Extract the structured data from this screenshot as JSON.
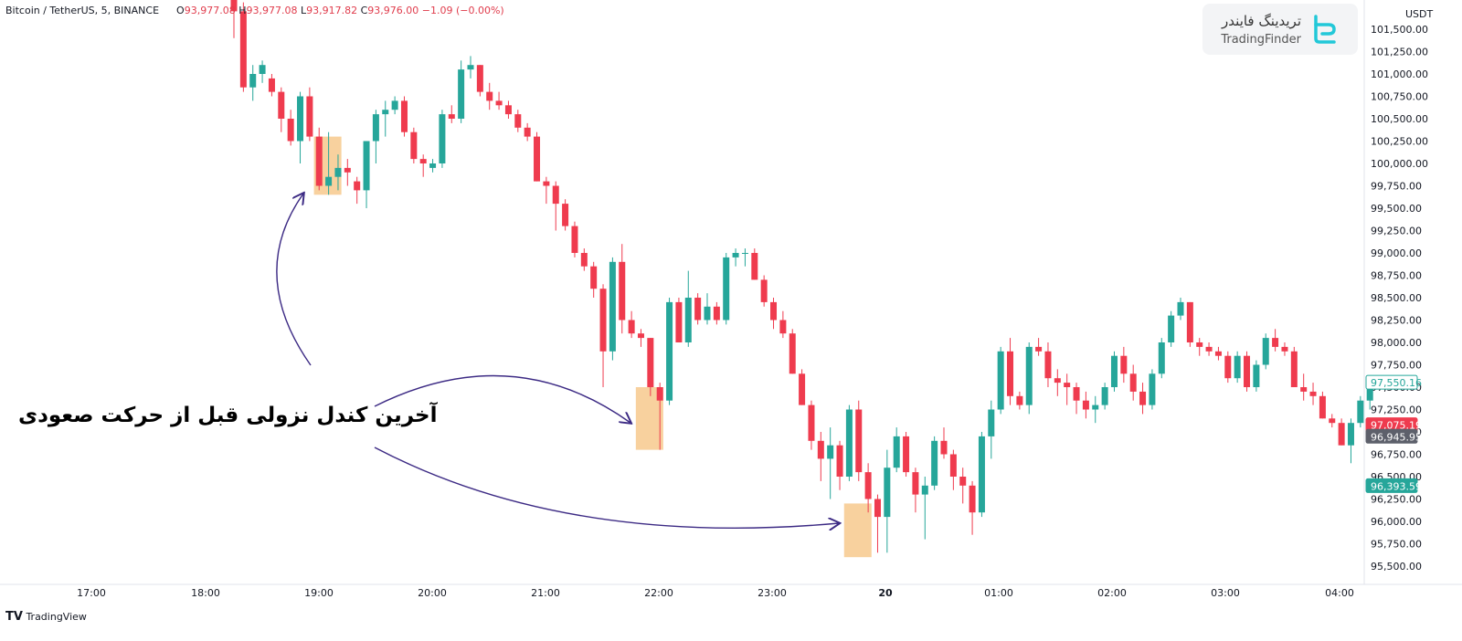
{
  "header": {
    "symbol": "Bitcoin / TetherUS, 5, BINANCE",
    "open_label": "O",
    "open": "93,977.08",
    "high_label": "H",
    "high": "93,977.08",
    "low_label": "L",
    "low": "93,917.82",
    "close_label": "C",
    "close": "93,976.00",
    "change": "−1.09 (−0.00%)"
  },
  "watermark": {
    "fa": "تریدینگ فایندر",
    "en": "TradingFinder",
    "logo_icon": "tradingfinder-logo-icon"
  },
  "annotation": "آخرین کندل نزولی قبل از حرکت صعودی",
  "footer": {
    "brand": "TradingView",
    "logo_icon": "tradingview-logo-icon"
  },
  "colors": {
    "up": "#26a69a",
    "down": "#ef3b4e",
    "highlight": "#f7c98d",
    "arrow": "#3c2a84"
  },
  "chart_data": {
    "type": "candlestick",
    "currency": "USDT",
    "ylim": [
      95300,
      101800
    ],
    "y_ticks": [
      "95,500.00",
      "95,750.00",
      "96,000.00",
      "96,250.00",
      "96,500.00",
      "96,750.00",
      "97,000.00",
      "97,250.00",
      "97,500.00",
      "97,750.00",
      "98,000.00",
      "98,250.00",
      "98,500.00",
      "98,750.00",
      "99,000.00",
      "99,250.00",
      "99,500.00",
      "99,750.00",
      "100,000.00",
      "100,250.00",
      "100,500.00",
      "100,750.00",
      "101,000.00",
      "101,250.00",
      "101,500.00"
    ],
    "x_ticks": [
      "17:00",
      "18:00",
      "19:00",
      "20:00",
      "21:00",
      "22:00",
      "23:00",
      "20",
      "01:00",
      "02:00",
      "03:00",
      "04:00"
    ],
    "price_tags": [
      {
        "value": 97550.16,
        "label": "97,550.16",
        "style": "outline-up"
      },
      {
        "value": 97075.19,
        "label": "97,075.19",
        "style": "down"
      },
      {
        "value": 96945.95,
        "label": "96,945.95",
        "style": "gray"
      },
      {
        "value": 96393.59,
        "label": "96,393.59",
        "style": "up"
      }
    ],
    "candles": [
      [
        102400,
        102600,
        101400,
        101700
      ],
      [
        101700,
        101800,
        100800,
        100850
      ],
      [
        100850,
        101100,
        100700,
        101000
      ],
      [
        101000,
        101150,
        100900,
        101100
      ],
      [
        100950,
        101000,
        100750,
        100800
      ],
      [
        100800,
        100850,
        100350,
        100500
      ],
      [
        100500,
        100600,
        100200,
        100250
      ],
      [
        100250,
        100800,
        100000,
        100750
      ],
      [
        100750,
        100850,
        100250,
        100300
      ],
      [
        100300,
        100400,
        99700,
        99750
      ],
      [
        99750,
        100350,
        99650,
        99850
      ],
      [
        99850,
        100100,
        99700,
        99950
      ],
      [
        99950,
        100050,
        99750,
        99900
      ],
      [
        99800,
        99850,
        99550,
        99700
      ],
      [
        99700,
        100250,
        99500,
        100250
      ],
      [
        100250,
        100600,
        100000,
        100550
      ],
      [
        100550,
        100700,
        100300,
        100600
      ],
      [
        100600,
        100750,
        100550,
        100700
      ],
      [
        100700,
        100750,
        100300,
        100350
      ],
      [
        100350,
        100400,
        100000,
        100050
      ],
      [
        100050,
        100100,
        99850,
        100000
      ],
      [
        99950,
        100050,
        99900,
        100000
      ],
      [
        100000,
        100600,
        99950,
        100550
      ],
      [
        100550,
        100650,
        100450,
        100500
      ],
      [
        100500,
        101150,
        100450,
        101050
      ],
      [
        101050,
        101200,
        100950,
        101100
      ],
      [
        101100,
        101100,
        100750,
        100800
      ],
      [
        100800,
        100900,
        100600,
        100700
      ],
      [
        100700,
        100800,
        100600,
        100650
      ],
      [
        100650,
        100700,
        100500,
        100550
      ],
      [
        100550,
        100600,
        100350,
        100400
      ],
      [
        100400,
        100450,
        100250,
        100300
      ],
      [
        100300,
        100350,
        99800,
        99800
      ],
      [
        99800,
        99850,
        99550,
        99750
      ],
      [
        99750,
        99800,
        99250,
        99550
      ],
      [
        99550,
        99600,
        99250,
        99300
      ],
      [
        99300,
        99350,
        98950,
        99000
      ],
      [
        99000,
        99050,
        98800,
        98850
      ],
      [
        98850,
        98900,
        98500,
        98600
      ],
      [
        98600,
        98650,
        97500,
        97900
      ],
      [
        97900,
        98950,
        97800,
        98900
      ],
      [
        98900,
        99100,
        98100,
        98250
      ],
      [
        98250,
        98350,
        98050,
        98100
      ],
      [
        98100,
        98150,
        97950,
        98050
      ],
      [
        98050,
        98050,
        97400,
        97500
      ],
      [
        97500,
        97550,
        96800,
        97350
      ],
      [
        97350,
        98500,
        97300,
        98450
      ],
      [
        98450,
        98500,
        98000,
        98000
      ],
      [
        98000,
        98800,
        97950,
        98500
      ],
      [
        98500,
        98550,
        98200,
        98250
      ],
      [
        98250,
        98550,
        98200,
        98400
      ],
      [
        98400,
        98450,
        98200,
        98250
      ],
      [
        98250,
        99000,
        98200,
        98950
      ],
      [
        98950,
        99050,
        98850,
        99000
      ],
      [
        99000,
        99050,
        98850,
        99000
      ],
      [
        99000,
        99050,
        98700,
        98700
      ],
      [
        98700,
        98750,
        98400,
        98450
      ],
      [
        98450,
        98500,
        98150,
        98250
      ],
      [
        98250,
        98350,
        98050,
        98100
      ],
      [
        98100,
        98150,
        97650,
        97650
      ],
      [
        97650,
        97700,
        97300,
        97300
      ],
      [
        97300,
        97350,
        96800,
        96900
      ],
      [
        96900,
        97000,
        96450,
        96700
      ],
      [
        96700,
        97050,
        96250,
        96850
      ],
      [
        96850,
        96900,
        96350,
        96500
      ],
      [
        96500,
        97300,
        96450,
        97250
      ],
      [
        97250,
        97350,
        96450,
        96550
      ],
      [
        96550,
        96650,
        96100,
        96250
      ],
      [
        96250,
        96300,
        95650,
        96050
      ],
      [
        96050,
        96800,
        95650,
        96600
      ],
      [
        96600,
        97050,
        96550,
        96950
      ],
      [
        96950,
        97000,
        96500,
        96550
      ],
      [
        96550,
        96600,
        96100,
        96300
      ],
      [
        96300,
        96500,
        95800,
        96400
      ],
      [
        96400,
        96950,
        96350,
        96900
      ],
      [
        96900,
        97050,
        96700,
        96750
      ],
      [
        96750,
        96800,
        96350,
        96500
      ],
      [
        96500,
        96600,
        96200,
        96400
      ],
      [
        96400,
        96450,
        95850,
        96100
      ],
      [
        96100,
        97000,
        96050,
        96950
      ],
      [
        96950,
        97350,
        96700,
        97250
      ],
      [
        97250,
        97950,
        97200,
        97900
      ],
      [
        97900,
        98050,
        97300,
        97400
      ],
      [
        97400,
        97450,
        97250,
        97300
      ],
      [
        97300,
        98000,
        97200,
        97950
      ],
      [
        97950,
        98050,
        97850,
        97900
      ],
      [
        97900,
        98000,
        97500,
        97600
      ],
      [
        97600,
        97700,
        97400,
        97550
      ],
      [
        97550,
        97650,
        97300,
        97500
      ],
      [
        97500,
        97550,
        97200,
        97350
      ],
      [
        97350,
        97450,
        97150,
        97250
      ],
      [
        97250,
        97400,
        97100,
        97300
      ],
      [
        97300,
        97550,
        97250,
        97500
      ],
      [
        97500,
        97900,
        97450,
        97850
      ],
      [
        97850,
        97950,
        97550,
        97650
      ],
      [
        97650,
        97750,
        97350,
        97450
      ],
      [
        97450,
        97550,
        97200,
        97300
      ],
      [
        97300,
        97700,
        97250,
        97650
      ],
      [
        97650,
        98050,
        97600,
        98000
      ],
      [
        98000,
        98350,
        97950,
        98300
      ],
      [
        98300,
        98500,
        98250,
        98450
      ],
      [
        98450,
        98450,
        97950,
        98000
      ],
      [
        98000,
        98050,
        97850,
        97950
      ],
      [
        97950,
        98000,
        97850,
        97900
      ],
      [
        97900,
        97950,
        97800,
        97850
      ],
      [
        97850,
        97900,
        97550,
        97600
      ],
      [
        97600,
        97900,
        97550,
        97850
      ],
      [
        97850,
        97900,
        97450,
        97500
      ],
      [
        97500,
        97800,
        97450,
        97750
      ],
      [
        97750,
        98100,
        97700,
        98050
      ],
      [
        98050,
        98150,
        97900,
        97950
      ],
      [
        97950,
        98000,
        97850,
        97900
      ],
      [
        97900,
        97950,
        97500,
        97500
      ],
      [
        97500,
        97650,
        97350,
        97450
      ],
      [
        97450,
        97550,
        97300,
        97400
      ],
      [
        97400,
        97450,
        97150,
        97150
      ],
      [
        97150,
        97200,
        97050,
        97100
      ],
      [
        97100,
        97150,
        96850,
        96850
      ],
      [
        96850,
        97150,
        96650,
        97100
      ],
      [
        97100,
        97400,
        97050,
        97350
      ],
      [
        97350,
        97550,
        97250,
        97500
      ]
    ]
  }
}
